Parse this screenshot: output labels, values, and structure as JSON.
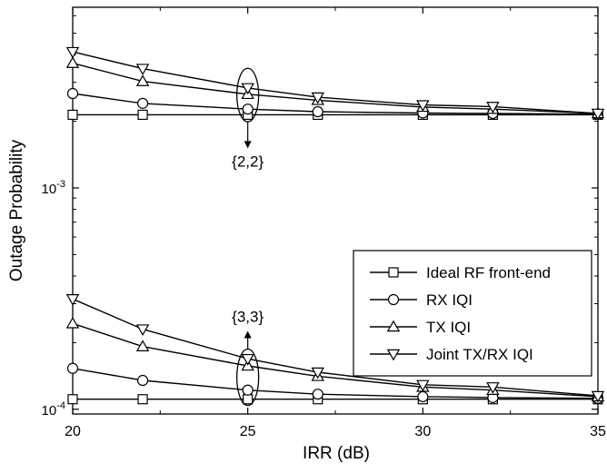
{
  "chart_data": {
    "type": "line",
    "xlabel": "IRR (dB)",
    "ylabel": "Outage Probability",
    "xlim": [
      20,
      35
    ],
    "ylim": [
      9.52e-05,
      0.00655
    ],
    "yscale": "log",
    "grid": false,
    "legend_position": "center-right",
    "x_ticks": [
      {
        "value": 20,
        "label": "20"
      },
      {
        "value": 25,
        "label": "25"
      },
      {
        "value": 30,
        "label": "30"
      },
      {
        "value": 35,
        "label": "35"
      }
    ],
    "y_ticks": [
      {
        "value": 0.0001,
        "base": "10",
        "exp": "-4"
      },
      {
        "value": 0.001,
        "base": "10",
        "exp": "-3"
      }
    ],
    "series": [
      {
        "name": "Ideal RF front-end",
        "marker": "square",
        "groups": [
          {
            "x": [
              20,
              22,
              25,
              27,
              30,
              32,
              35
            ],
            "y": [
              0.00214,
              0.00214,
              0.00214,
              0.00214,
              0.00214,
              0.00214,
              0.00214
            ]
          },
          {
            "x": [
              20,
              22,
              25,
              27,
              30,
              32,
              35
            ],
            "y": [
              0.000111,
              0.000111,
              0.000111,
              0.000111,
              0.000111,
              0.000111,
              0.000111
            ]
          }
        ]
      },
      {
        "name": "RX IQI",
        "marker": "circle",
        "groups": [
          {
            "x": [
              20,
              22,
              25,
              27,
              30,
              32,
              35
            ],
            "y": [
              0.00267,
              0.00241,
              0.00227,
              0.00221,
              0.00218,
              0.00217,
              0.00215
            ]
          },
          {
            "x": [
              20,
              22,
              25,
              27,
              30,
              32,
              35
            ],
            "y": [
              0.000153,
              0.000135,
              0.000122,
              0.000117,
              0.000114,
              0.000113,
              0.000112
            ]
          }
        ]
      },
      {
        "name": "TX IQI",
        "marker": "triangle-up",
        "groups": [
          {
            "x": [
              20,
              22,
              25,
              27,
              30,
              32,
              35
            ],
            "y": [
              0.00366,
              0.00303,
              0.00265,
              0.00249,
              0.00232,
              0.00227,
              0.00217
            ]
          },
          {
            "x": [
              20,
              22,
              25,
              27,
              30,
              32,
              35
            ],
            "y": [
              0.000244,
              0.000192,
              0.000157,
              0.000141,
              0.000126,
              0.000122,
              0.000114
            ]
          }
        ]
      },
      {
        "name": "Joint TX/RX IQI",
        "marker": "triangle-down",
        "groups": [
          {
            "x": [
              20,
              22,
              25,
              27,
              30,
              32,
              35
            ],
            "y": [
              0.00412,
              0.00346,
              0.00283,
              0.00257,
              0.00237,
              0.00233,
              0.00217
            ]
          },
          {
            "x": [
              20,
              22,
              25,
              27,
              30,
              32,
              35
            ],
            "y": [
              0.000315,
              0.00023,
              0.000169,
              0.000147,
              0.000129,
              0.000126,
              0.000115
            ]
          }
        ]
      }
    ],
    "annotations": [
      {
        "text": "{2,2}",
        "x": 25,
        "ellipse_y": [
          0.00199,
          0.00347
        ],
        "arrow_direction": "down",
        "arrow_to_y": 0.00151
      },
      {
        "text": "{3,3}",
        "x": 25,
        "ellipse_y": [
          0.000104,
          0.000187
        ],
        "arrow_direction": "up",
        "arrow_to_y": 0.000226
      }
    ]
  }
}
